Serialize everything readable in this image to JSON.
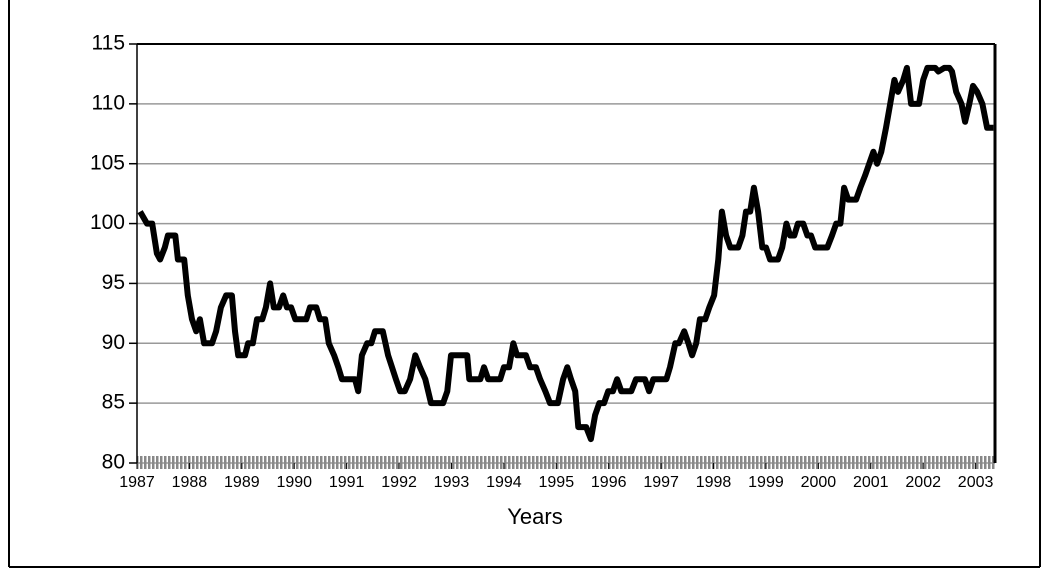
{
  "chart_data": {
    "type": "line",
    "x_label": "Years",
    "color": "#000000",
    "grid": true,
    "xlim": [
      1987,
      2003.37
    ],
    "xticks": [
      1987,
      1988,
      1989,
      1990,
      1991,
      1992,
      1993,
      1994,
      1995,
      1996,
      1997,
      1998,
      1999,
      2000,
      2001,
      2002,
      2003
    ],
    "ylim": [
      80,
      115
    ],
    "yticks": [
      80,
      85,
      90,
      95,
      100,
      105,
      110,
      115
    ],
    "x": [
      1987.06,
      1987.19,
      1987.29,
      1987.38,
      1987.44,
      1987.53,
      1987.59,
      1987.73,
      1987.78,
      1987.9,
      1987.97,
      1988.05,
      1988.13,
      1988.2,
      1988.28,
      1988.43,
      1988.51,
      1988.6,
      1988.7,
      1988.81,
      1988.87,
      1988.93,
      1989.06,
      1989.12,
      1989.21,
      1989.29,
      1989.39,
      1989.46,
      1989.54,
      1989.61,
      1989.71,
      1989.79,
      1989.86,
      1989.94,
      1990.02,
      1990.23,
      1990.3,
      1990.42,
      1990.49,
      1990.59,
      1990.66,
      1990.76,
      1990.84,
      1990.91,
      1991.16,
      1991.22,
      1991.29,
      1991.39,
      1991.47,
      1991.54,
      1991.69,
      1991.79,
      1991.94,
      1992.02,
      1992.11,
      1992.21,
      1992.31,
      1992.4,
      1992.5,
      1992.61,
      1992.84,
      1992.92,
      1992.99,
      1993.3,
      1993.34,
      1993.55,
      1993.62,
      1993.7,
      1993.93,
      1994.0,
      1994.1,
      1994.18,
      1994.25,
      1994.42,
      1994.5,
      1994.61,
      1994.69,
      1994.79,
      1994.88,
      1995.03,
      1995.13,
      1995.21,
      1995.28,
      1995.36,
      1995.42,
      1995.57,
      1995.66,
      1995.74,
      1995.82,
      1995.91,
      1995.99,
      1996.08,
      1996.16,
      1996.24,
      1996.43,
      1996.52,
      1996.69,
      1996.77,
      1996.85,
      1997.1,
      1997.17,
      1997.27,
      1997.34,
      1997.44,
      1997.52,
      1997.59,
      1997.67,
      1997.74,
      1997.84,
      1997.92,
      1998.01,
      1998.09,
      1998.16,
      1998.24,
      1998.32,
      1998.47,
      1998.55,
      1998.62,
      1998.7,
      1998.77,
      1998.85,
      1998.93,
      1999.0,
      1999.08,
      1999.23,
      1999.31,
      1999.39,
      1999.46,
      1999.54,
      1999.61,
      1999.71,
      1999.79,
      1999.86,
      1999.94,
      2000.17,
      2000.26,
      2000.34,
      2000.42,
      2000.49,
      2000.57,
      2000.72,
      2000.8,
      2000.89,
      2000.97,
      2001.05,
      2001.12,
      2001.2,
      2001.29,
      2001.37,
      2001.45,
      2001.52,
      2001.62,
      2001.69,
      2001.77,
      2001.92,
      2002.0,
      2002.08,
      2002.23,
      2002.29,
      2002.4,
      2002.5,
      2002.55,
      2002.63,
      2002.73,
      2002.8,
      2002.88,
      2002.95,
      2003.03,
      2003.13,
      2003.22,
      2003.34
    ],
    "values": [
      101,
      100,
      100,
      97.5,
      97,
      98,
      99,
      99,
      97,
      97,
      94,
      92,
      91,
      92,
      90,
      90,
      91,
      93,
      94,
      94,
      91,
      89,
      89,
      90,
      90,
      92,
      92,
      93,
      95,
      93,
      93,
      94,
      93,
      93,
      92,
      92,
      93,
      93,
      92,
      92,
      90,
      89,
      88,
      87,
      87,
      86,
      89,
      90,
      90,
      91,
      91,
      89,
      87,
      86,
      86,
      87,
      89,
      88,
      87,
      85,
      85,
      86,
      89,
      89,
      87,
      87,
      88,
      87,
      87,
      88,
      88,
      90,
      89,
      89,
      88,
      88,
      87,
      86,
      85,
      85,
      87,
      88,
      87,
      86,
      83,
      83,
      82,
      84,
      85,
      85,
      86,
      86,
      87,
      86,
      86,
      87,
      87,
      86,
      87,
      87,
      88,
      90,
      90,
      91,
      90,
      89,
      90,
      92,
      92,
      93,
      94,
      97,
      101,
      99,
      98,
      98,
      99,
      101,
      101,
      103,
      101,
      98,
      98,
      97,
      97,
      98,
      100,
      99,
      99,
      100,
      100,
      99,
      99,
      98,
      98,
      99,
      100,
      100,
      103,
      102,
      102,
      103,
      104,
      105,
      106,
      105,
      106,
      108,
      110,
      112,
      111,
      112,
      113,
      110,
      110,
      112,
      113,
      113,
      112.7,
      113,
      113,
      112.7,
      111,
      110,
      108.5,
      110,
      111.5,
      111,
      110,
      108,
      108
    ]
  }
}
